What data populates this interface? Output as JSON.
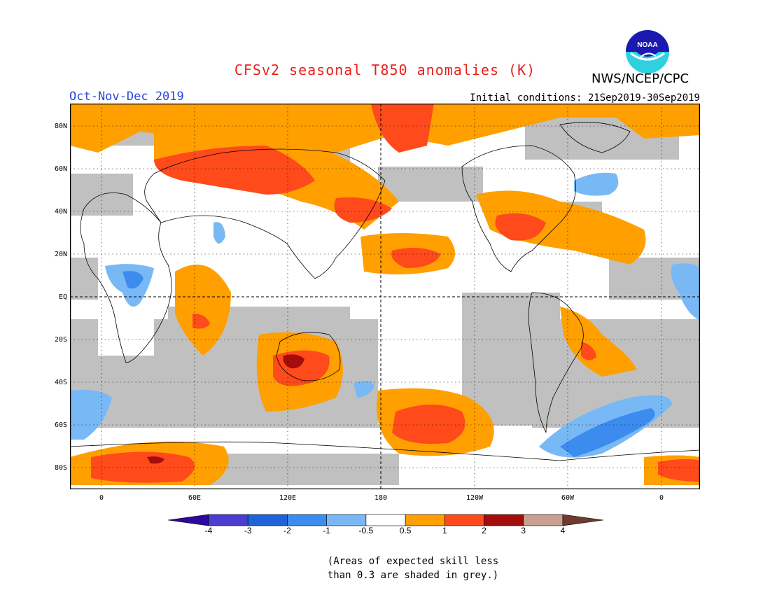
{
  "header": {
    "title": "CFSv2 seasonal T850 anomalies (K)",
    "title_color": "#e8201a",
    "agency": "NWS/NCEP/CPC",
    "period": "Oct-Nov-Dec 2019",
    "period_color": "#2a46d8",
    "initial_conditions": "Initial conditions: 21Sep2019-30Sep2019",
    "logo_text": "NOAA"
  },
  "map": {
    "projection": "cylindrical equidistant",
    "central_longitude": "180",
    "lat_labels": [
      "80N",
      "60N",
      "40N",
      "20N",
      "EQ",
      "20S",
      "40S",
      "60S",
      "80S"
    ],
    "lon_labels": [
      "0",
      "60E",
      "120E",
      "180",
      "120W",
      "60W",
      "0"
    ],
    "grid": "dotted",
    "masked_color": "#c0c0c0"
  },
  "colorbar": {
    "ticks": [
      "-4",
      "-3",
      "-2",
      "-1",
      "-0.5",
      "0.5",
      "1",
      "2",
      "3",
      "4"
    ],
    "colors": [
      "#2d0a9e",
      "#4a3dd0",
      "#1e64d8",
      "#3c8cf0",
      "#78b9f5",
      "#ffffff",
      "#ff9f00",
      "#ff4a1c",
      "#a50d0d",
      "#c8a090",
      "#703a2e"
    ]
  },
  "note": {
    "line1": "(Areas of expected skill less",
    "line2": "than 0.3 are shaded in grey.)"
  }
}
